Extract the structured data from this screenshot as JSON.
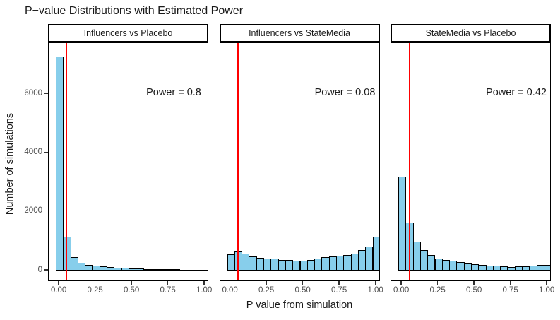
{
  "title": "P−value Distributions with Estimated Power",
  "colors": {
    "bar_fill": "#87CEEB",
    "bar_border": "#000000",
    "ref_line": "#FF0000",
    "axis_text": "#4d4d4d"
  },
  "y_axis": {
    "label": "Number of simulations",
    "tick_labels": [
      "0",
      "2000",
      "4000",
      "6000"
    ],
    "tick_values": [
      0,
      2000,
      4000,
      6000
    ]
  },
  "x_axis": {
    "label": "P value from simulation",
    "tick_labels": [
      "0.00",
      "0.25",
      "0.50",
      "0.75",
      "1.00"
    ],
    "tick_values": [
      0,
      0.25,
      0.5,
      0.75,
      1
    ]
  },
  "chart_data": {
    "type": "bar",
    "subtype": "faceted-histogram",
    "title": "P−value Distributions with Estimated Power",
    "xlabel": "P value from simulation",
    "ylabel": "Number of simulations",
    "grid": false,
    "ylim": [
      0,
      7600
    ],
    "xlim": [
      -0.025,
      1.025
    ],
    "binwidth": 0.05,
    "ref_line_x": 0.05,
    "bin_centers": [
      0,
      0.05,
      0.1,
      0.15,
      0.2,
      0.25,
      0.3,
      0.35,
      0.4,
      0.45,
      0.5,
      0.55,
      0.6,
      0.65,
      0.7,
      0.75,
      0.8,
      0.85,
      0.9,
      0.95,
      1.0
    ],
    "panels": [
      {
        "facet": "Influencers vs Placebo",
        "power_label": "Power = 0.8",
        "values": [
          7270,
          1150,
          450,
          265,
          190,
          160,
          140,
          120,
          100,
          85,
          72,
          62,
          55,
          50,
          45,
          40,
          37,
          34,
          32,
          30,
          28
        ]
      },
      {
        "facet": "Influencers vs StateMedia",
        "power_label": "Power = 0.08",
        "values": [
          545,
          650,
          570,
          470,
          440,
          400,
          415,
          370,
          350,
          335,
          325,
          360,
          410,
          445,
          480,
          505,
          520,
          585,
          700,
          820,
          1150
        ]
      },
      {
        "facet": "StateMedia vs Placebo",
        "power_label": "Power = 0.42",
        "values": [
          3200,
          1640,
          975,
          700,
          520,
          412,
          365,
          328,
          288,
          250,
          218,
          195,
          175,
          170,
          155,
          120,
          155,
          155,
          170,
          200,
          200
        ]
      }
    ]
  }
}
